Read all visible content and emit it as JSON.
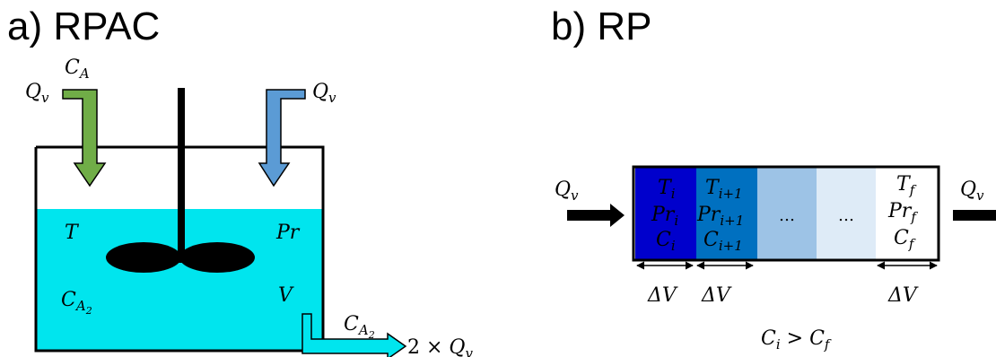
{
  "panel_a": {
    "heading": "a) RPAC",
    "inlet_left": {
      "flow": "Q",
      "flow_sub": "v",
      "conc": "C",
      "conc_sub": "A"
    },
    "inlet_right": {
      "flow": "Q",
      "flow_sub": "v"
    },
    "vars": {
      "temperature": "T",
      "pressure": "Pr",
      "conc": "C",
      "conc_sub": "A",
      "conc_subsub": "2",
      "volume": "V"
    },
    "outlet": {
      "conc": "C",
      "conc_sub": "A",
      "conc_subsub": "2",
      "flow_prefix": "2 × ",
      "flow": "Q",
      "flow_sub": "v"
    },
    "colors": {
      "liquid": "#00e5ee",
      "inlet_a": "#70ad47",
      "inlet_b": "#5b9bd5",
      "outlet": "#00e5ee"
    }
  },
  "panel_b": {
    "heading": "b) RP",
    "flow_in": {
      "flow": "Q",
      "flow_sub": "v"
    },
    "flow_out": {
      "flow": "Q",
      "flow_sub": "v"
    },
    "cells": [
      {
        "color": "#0000cc",
        "lines": [
          {
            "main": "T",
            "sub": "i"
          },
          {
            "main": "Pr",
            "sub": "i"
          },
          {
            "main": "C",
            "sub": "i"
          }
        ]
      },
      {
        "color": "#0070c0",
        "lines": [
          {
            "main": "T",
            "sub": "i+1"
          },
          {
            "main": "Pr",
            "sub": "i+1"
          },
          {
            "main": "C",
            "sub": "i+1"
          }
        ]
      },
      {
        "color": "#9dc3e6",
        "lines": [
          {
            "main": "…",
            "sub": ""
          }
        ]
      },
      {
        "color": "#deebf7",
        "lines": [
          {
            "main": "…",
            "sub": ""
          }
        ]
      },
      {
        "color": "#ffffff",
        "lines": [
          {
            "main": "T",
            "sub": "f"
          },
          {
            "main": "Pr",
            "sub": "f"
          },
          {
            "main": "C",
            "sub": "f"
          }
        ]
      }
    ],
    "delta_label": "ΔV",
    "relation": {
      "left": "C",
      "left_sub": "i",
      "op": " > ",
      "right": "C",
      "right_sub": "f"
    }
  }
}
